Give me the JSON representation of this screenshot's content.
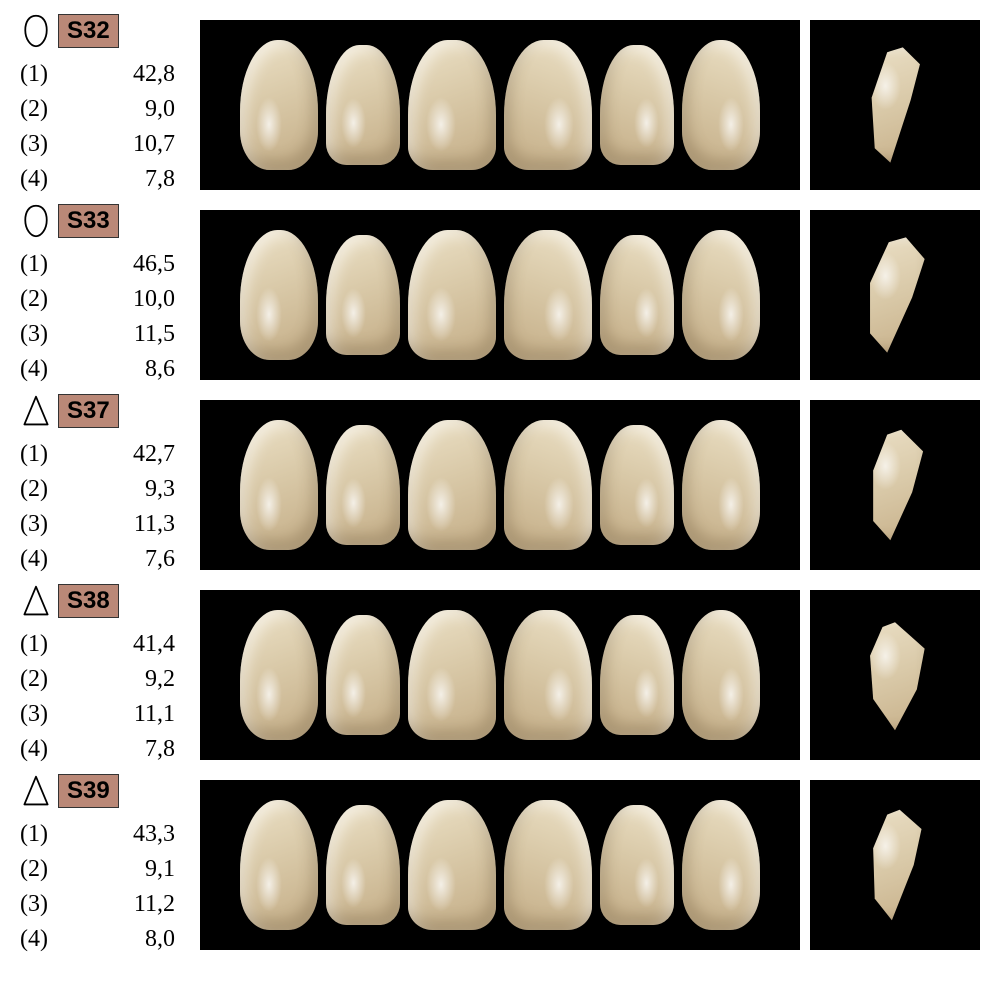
{
  "colors": {
    "background": "#ffffff",
    "panel_bg": "#000000",
    "label_bg": "#ba8877",
    "tooth_light": "#e8dcc0",
    "tooth_mid": "#d9c9a8",
    "tooth_dark": "#c9b48f",
    "text": "#000000"
  },
  "rows": [
    {
      "code": "S32",
      "shape": "ovoid",
      "measurements": [
        {
          "k": "(1)",
          "v": "42,8"
        },
        {
          "k": "(2)",
          "v": "9,0"
        },
        {
          "k": "(3)",
          "v": "10,7"
        },
        {
          "k": "(4)",
          "v": "7,8"
        }
      ],
      "profile_clip": "polygon(60% 2%, 82% 16%, 70% 46%, 44% 98%, 24% 86%, 20% 44%, 40% 6%)"
    },
    {
      "code": "S33",
      "shape": "ovoid",
      "measurements": [
        {
          "k": "(1)",
          "v": "46,5"
        },
        {
          "k": "(2)",
          "v": "10,0"
        },
        {
          "k": "(3)",
          "v": "11,5"
        },
        {
          "k": "(4)",
          "v": "8,6"
        }
      ],
      "profile_clip": "polygon(64% 2%, 88% 20%, 72% 52%, 40% 98%, 18% 82%, 18% 40%, 42% 6%)"
    },
    {
      "code": "S37",
      "shape": "triangular",
      "measurements": [
        {
          "k": "(1)",
          "v": "42,7"
        },
        {
          "k": "(2)",
          "v": "9,3"
        },
        {
          "k": "(3)",
          "v": "11,3"
        },
        {
          "k": "(4)",
          "v": "7,6"
        }
      ],
      "profile_clip": "polygon(58% 4%, 86% 22%, 72% 56%, 44% 96%, 22% 80%, 22% 38%, 40% 8%)"
    },
    {
      "code": "S38",
      "shape": "triangular",
      "measurements": [
        {
          "k": "(1)",
          "v": "41,4"
        },
        {
          "k": "(2)",
          "v": "9,2"
        },
        {
          "k": "(3)",
          "v": "11,1"
        },
        {
          "k": "(4)",
          "v": "7,8"
        }
      ],
      "profile_clip": "polygon(50% 6%, 88% 28%, 78% 62%, 50% 96%, 22% 70%, 18% 34%, 34% 10%)"
    },
    {
      "code": "S39",
      "shape": "triangular",
      "measurements": [
        {
          "k": "(1)",
          "v": "43,3"
        },
        {
          "k": "(2)",
          "v": "9,1"
        },
        {
          "k": "(3)",
          "v": "11,2"
        },
        {
          "k": "(4)",
          "v": "8,0"
        }
      ],
      "profile_clip": "polygon(56% 4%, 84% 20%, 74% 50%, 46% 96%, 24% 78%, 22% 36%, 40% 8%)"
    }
  ]
}
